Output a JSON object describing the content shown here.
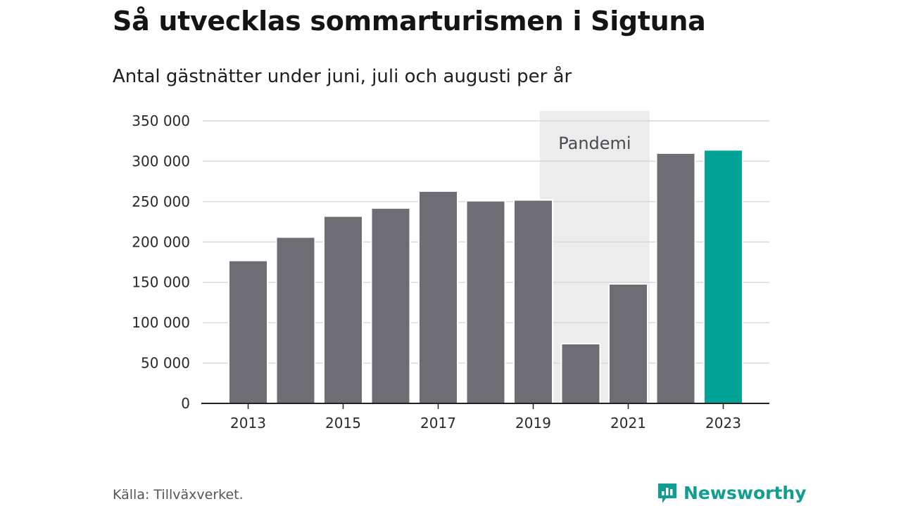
{
  "title": "Så utvecklas sommarturismen i Sigtuna",
  "subtitle": "Antal gästnätter under juni, juli och augusti per år",
  "source": "Källa: Tillväxverket.",
  "brand": {
    "name": "Newsworthy",
    "icon": "newsworthy-logo-icon"
  },
  "colors": {
    "bar": "#6e6d73",
    "highlight": "#00a396",
    "band": "#ececec",
    "grid": "#d9d9d9",
    "axis": "#222222"
  },
  "chart_data": {
    "type": "bar",
    "title": "Så utvecklas sommarturismen i Sigtuna",
    "subtitle": "Antal gästnätter under juni, juli och augusti per år",
    "categories": [
      "2013",
      "2014",
      "2015",
      "2016",
      "2017",
      "2018",
      "2019",
      "2020",
      "2021",
      "2022",
      "2023"
    ],
    "values": [
      177000,
      206000,
      232000,
      242000,
      263000,
      251000,
      252000,
      74000,
      148000,
      310000,
      314000
    ],
    "highlight": "2023",
    "xticks": [
      "2013",
      "2015",
      "2017",
      "2019",
      "2021",
      "2023"
    ],
    "yticks": [
      0,
      50000,
      100000,
      150000,
      200000,
      250000,
      300000,
      350000
    ],
    "ytick_labels": [
      "0",
      "50 000",
      "100 000",
      "150 000",
      "200 000",
      "250 000",
      "300 000",
      "350 000"
    ],
    "ylim": [
      0,
      350000
    ],
    "grid": true,
    "xlabel": "",
    "ylabel": "",
    "annotation": {
      "label": "Pandemi",
      "from": "2020",
      "to": "2021"
    }
  }
}
